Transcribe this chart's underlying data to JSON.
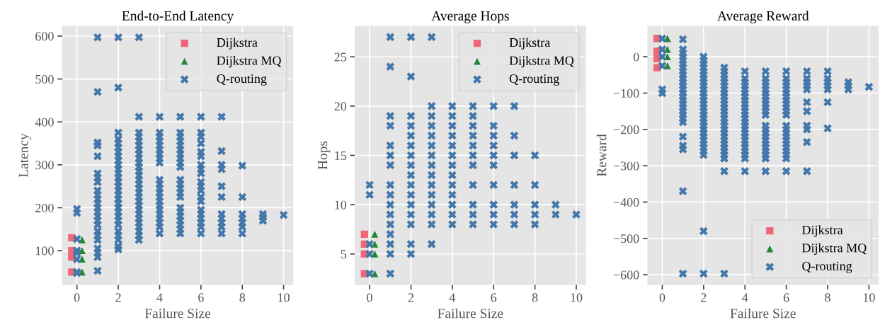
{
  "chart_data": [
    {
      "type": "scatter",
      "title": "End-to-End Latency",
      "xlabel": "Failure Size",
      "ylabel": "Latency",
      "xlim": [
        -0.7,
        10.45
      ],
      "ylim": [
        21,
        623
      ],
      "xticks": [
        0,
        2,
        4,
        6,
        8,
        10
      ],
      "yticks": [
        100,
        200,
        300,
        400,
        500,
        600
      ],
      "grid": true,
      "legend": "top right",
      "series": [
        {
          "name": "Dijkstra",
          "color": "#ee6677",
          "marker": "square",
          "x": [
            -0.25,
            -0.25,
            -0.25,
            -0.25
          ],
          "values": [
            130,
            100,
            85,
            50
          ]
        },
        {
          "name": "Dijkstra MQ",
          "color": "#228833",
          "marker": "triangle",
          "x": [
            0.25,
            0.25,
            0.25,
            0.25
          ],
          "values": [
            125,
            100,
            80,
            50
          ]
        },
        {
          "name": "Q-routing",
          "color": "#4477aa",
          "marker": "cross",
          "x": [
            0,
            0,
            0,
            0,
            0,
            0,
            0,
            0,
            1,
            1,
            1,
            1,
            1,
            1,
            1,
            1,
            1,
            1,
            1,
            1,
            1,
            1,
            1,
            1,
            1,
            1,
            1,
            1,
            1,
            1,
            1,
            1,
            2,
            2,
            2,
            2,
            2,
            2,
            2,
            2,
            2,
            2,
            2,
            2,
            2,
            2,
            2,
            2,
            2,
            2,
            2,
            2,
            2,
            2,
            2,
            2,
            2,
            2,
            2,
            2,
            2,
            3,
            3,
            3,
            3,
            3,
            3,
            3,
            3,
            3,
            3,
            3,
            3,
            3,
            3,
            3,
            3,
            3,
            3,
            3,
            3,
            3,
            3,
            3,
            3,
            3,
            3,
            3,
            3,
            4,
            4,
            4,
            4,
            4,
            4,
            4,
            4,
            4,
            4,
            4,
            4,
            4,
            4,
            4,
            4,
            4,
            4,
            4,
            4,
            4,
            4,
            5,
            5,
            5,
            5,
            5,
            5,
            5,
            5,
            5,
            5,
            5,
            5,
            5,
            5,
            5,
            5,
            5,
            5,
            5,
            5,
            5,
            5,
            6,
            6,
            6,
            6,
            6,
            6,
            6,
            6,
            6,
            6,
            6,
            6,
            6,
            6,
            6,
            6,
            6,
            6,
            6,
            6,
            7,
            7,
            7,
            7,
            7,
            7,
            7,
            7,
            7,
            7,
            7,
            8,
            8,
            8,
            8,
            8,
            8,
            8,
            9,
            9,
            9,
            10
          ],
          "values": [
            197,
            188,
            127,
            100,
            95,
            80,
            50,
            48,
            597,
            470,
            352,
            345,
            320,
            280,
            270,
            260,
            240,
            230,
            220,
            210,
            200,
            190,
            180,
            170,
            160,
            145,
            135,
            125,
            105,
            95,
            85,
            53,
            597,
            480,
            375,
            360,
            350,
            340,
            330,
            320,
            310,
            300,
            290,
            280,
            270,
            260,
            250,
            240,
            230,
            220,
            210,
            200,
            190,
            180,
            170,
            160,
            145,
            135,
            125,
            110,
            103,
            597,
            412,
            375,
            365,
            355,
            345,
            335,
            325,
            315,
            305,
            295,
            285,
            275,
            265,
            255,
            245,
            235,
            225,
            215,
            205,
            195,
            185,
            175,
            165,
            155,
            145,
            135,
            125,
            412,
            375,
            365,
            355,
            345,
            335,
            325,
            315,
            305,
            265,
            255,
            245,
            235,
            225,
            215,
            205,
            195,
            185,
            175,
            165,
            155,
            140,
            412,
            375,
            365,
            355,
            345,
            335,
            325,
            315,
            305,
            295,
            265,
            255,
            245,
            235,
            225,
            200,
            190,
            180,
            170,
            160,
            150,
            140,
            412,
            375,
            365,
            350,
            330,
            320,
            300,
            290,
            280,
            260,
            250,
            240,
            225,
            215,
            195,
            185,
            175,
            165,
            155,
            140,
            412,
            332,
            300,
            290,
            250,
            225,
            185,
            175,
            165,
            155,
            140,
            298,
            225,
            185,
            175,
            165,
            155,
            140,
            185,
            178,
            170,
            183
          ]
        }
      ]
    },
    {
      "type": "scatter",
      "title": "Average Hops",
      "xlabel": "Failure Size",
      "ylabel": "Hops",
      "xlim": [
        -0.7,
        10.45
      ],
      "ylim": [
        1.9,
        28.1
      ],
      "xticks": [
        0,
        2,
        4,
        6,
        8,
        10
      ],
      "yticks": [
        5,
        10,
        15,
        20,
        25
      ],
      "grid": true,
      "legend": "top right",
      "series": [
        {
          "name": "Dijkstra",
          "color": "#ee6677",
          "marker": "square",
          "x": [
            -0.25,
            -0.25,
            -0.25,
            -0.25
          ],
          "values": [
            7,
            6,
            5,
            3
          ]
        },
        {
          "name": "Dijkstra MQ",
          "color": "#228833",
          "marker": "triangle",
          "x": [
            0.25,
            0.25,
            0.25,
            0.25
          ],
          "values": [
            7,
            6,
            5,
            3
          ]
        },
        {
          "name": "Q-routing",
          "color": "#4477aa",
          "marker": "cross",
          "x": [
            0,
            0,
            0,
            0,
            0,
            1,
            1,
            1,
            1,
            1,
            1,
            1,
            1,
            1,
            1,
            1,
            1,
            1,
            1,
            1,
            1,
            2,
            2,
            2,
            2,
            2,
            2,
            2,
            2,
            2,
            2,
            2,
            2,
            2,
            2,
            2,
            2,
            3,
            3,
            3,
            3,
            3,
            3,
            3,
            3,
            3,
            3,
            3,
            3,
            3,
            3,
            3,
            4,
            4,
            4,
            4,
            4,
            4,
            4,
            4,
            4,
            4,
            4,
            4,
            4,
            5,
            5,
            5,
            5,
            5,
            5,
            5,
            5,
            5,
            5,
            5,
            6,
            6,
            6,
            6,
            6,
            6,
            6,
            6,
            6,
            6,
            7,
            7,
            7,
            7,
            7,
            7,
            7,
            8,
            8,
            8,
            8,
            8,
            9,
            9,
            10
          ],
          "values": [
            12,
            11,
            6,
            5,
            3,
            27,
            24,
            19,
            18,
            16,
            15,
            14,
            12,
            11,
            10,
            9,
            8,
            7,
            6,
            5,
            3,
            27,
            23,
            19,
            18,
            17,
            16,
            15,
            14,
            13,
            12,
            11,
            10,
            9,
            8,
            6,
            5,
            27,
            20,
            19,
            18,
            17,
            16,
            15,
            14,
            13,
            12,
            11,
            10,
            9,
            8,
            6,
            20,
            19,
            18,
            17,
            16,
            15,
            14,
            13,
            12,
            11,
            10,
            9,
            8,
            20,
            19,
            18,
            17,
            16,
            15,
            14,
            12,
            10,
            9,
            8,
            20,
            18,
            17,
            16,
            15,
            14,
            12,
            10,
            9,
            8,
            20,
            17,
            15,
            12,
            10,
            9,
            8,
            15,
            12,
            10,
            9,
            8,
            10,
            9,
            9
          ]
        }
      ]
    },
    {
      "type": "scatter",
      "title": "Average Reward",
      "xlabel": "Failure Size",
      "ylabel": "Reward",
      "xlim": [
        -0.7,
        10.45
      ],
      "ylim": [
        -627,
        84
      ],
      "xticks": [
        0,
        2,
        4,
        6,
        8,
        10
      ],
      "yticks": [
        {
          "value": -600,
          "label": "−600"
        },
        {
          "value": -500,
          "label": "−500"
        },
        {
          "value": -400,
          "label": "−400"
        },
        {
          "value": -300,
          "label": "−300"
        },
        {
          "value": -200,
          "label": "−200"
        },
        {
          "value": -100,
          "label": "−100"
        },
        0
      ],
      "grid": true,
      "legend": "bottom right",
      "series": [
        {
          "name": "Dijkstra",
          "color": "#ee6677",
          "marker": "square",
          "x": [
            -0.25,
            -0.25,
            -0.25,
            -0.25
          ],
          "values": [
            50,
            15,
            -5,
            -30
          ]
        },
        {
          "name": "Dijkstra MQ",
          "color": "#228833",
          "marker": "triangle",
          "x": [
            0.25,
            0.25,
            0.25,
            0.25
          ],
          "values": [
            50,
            20,
            0,
            -25
          ]
        },
        {
          "name": "Q-routing",
          "color": "#4477aa",
          "marker": "cross",
          "x": [
            0,
            0,
            0,
            0,
            0,
            0,
            1,
            1,
            1,
            1,
            1,
            1,
            1,
            1,
            1,
            1,
            1,
            1,
            1,
            1,
            1,
            1,
            1,
            1,
            1,
            1,
            1,
            1,
            1,
            1,
            1,
            1,
            1,
            2,
            2,
            2,
            2,
            2,
            2,
            2,
            2,
            2,
            2,
            2,
            2,
            2,
            2,
            2,
            2,
            2,
            2,
            2,
            2,
            2,
            2,
            2,
            2,
            2,
            2,
            2,
            2,
            2,
            2,
            3,
            3,
            3,
            3,
            3,
            3,
            3,
            3,
            3,
            3,
            3,
            3,
            3,
            3,
            3,
            3,
            3,
            3,
            3,
            3,
            3,
            3,
            3,
            3,
            3,
            3,
            3,
            3,
            4,
            4,
            4,
            4,
            4,
            4,
            4,
            4,
            4,
            4,
            4,
            4,
            4,
            4,
            4,
            4,
            4,
            4,
            4,
            4,
            4,
            4,
            4,
            4,
            4,
            5,
            5,
            5,
            5,
            5,
            5,
            5,
            5,
            5,
            5,
            5,
            5,
            5,
            5,
            5,
            5,
            5,
            5,
            5,
            5,
            5,
            5,
            5,
            6,
            6,
            6,
            6,
            6,
            6,
            6,
            6,
            6,
            6,
            6,
            6,
            6,
            6,
            6,
            6,
            6,
            6,
            6,
            6,
            6,
            6,
            6,
            7,
            7,
            7,
            7,
            7,
            7,
            7,
            7,
            7,
            7,
            7,
            8,
            8,
            8,
            8,
            8,
            8,
            8,
            9,
            9,
            9,
            10
          ],
          "values": [
            50,
            20,
            0,
            -25,
            -90,
            -100,
            48,
            20,
            10,
            0,
            -10,
            -20,
            -30,
            -40,
            -50,
            -60,
            -70,
            -80,
            -90,
            -100,
            -110,
            -120,
            -130,
            -140,
            -150,
            -160,
            -170,
            -180,
            -220,
            -245,
            -255,
            -370,
            -597,
            0,
            -10,
            -20,
            -30,
            -40,
            -50,
            -60,
            -70,
            -80,
            -90,
            -100,
            -110,
            -120,
            -130,
            -140,
            -150,
            -160,
            -170,
            -180,
            -190,
            -200,
            -210,
            -220,
            -230,
            -240,
            -250,
            -260,
            -270,
            -480,
            -597,
            -30,
            -40,
            -50,
            -60,
            -70,
            -80,
            -90,
            -100,
            -110,
            -120,
            -130,
            -140,
            -150,
            -160,
            -170,
            -180,
            -190,
            -200,
            -210,
            -220,
            -230,
            -240,
            -250,
            -260,
            -270,
            -280,
            -315,
            -597,
            -40,
            -60,
            -70,
            -80,
            -90,
            -100,
            -110,
            -120,
            -130,
            -140,
            -150,
            -160,
            -170,
            -180,
            -190,
            -200,
            -210,
            -220,
            -230,
            -240,
            -250,
            -260,
            -270,
            -280,
            -315,
            -40,
            -60,
            -70,
            -80,
            -90,
            -100,
            -110,
            -120,
            -130,
            -140,
            -150,
            -160,
            -190,
            -200,
            -210,
            -220,
            -230,
            -240,
            -250,
            -260,
            -270,
            -280,
            -315,
            -40,
            -60,
            -70,
            -80,
            -90,
            -100,
            -110,
            -120,
            -130,
            -140,
            -150,
            -160,
            -190,
            -200,
            -210,
            -220,
            -230,
            -240,
            -250,
            -260,
            -270,
            -280,
            -315,
            -40,
            -60,
            -70,
            -80,
            -90,
            -125,
            -150,
            -190,
            -200,
            -235,
            -315,
            -40,
            -60,
            -70,
            -80,
            -90,
            -125,
            -197,
            -70,
            -80,
            -90,
            -83
          ]
        }
      ]
    }
  ]
}
